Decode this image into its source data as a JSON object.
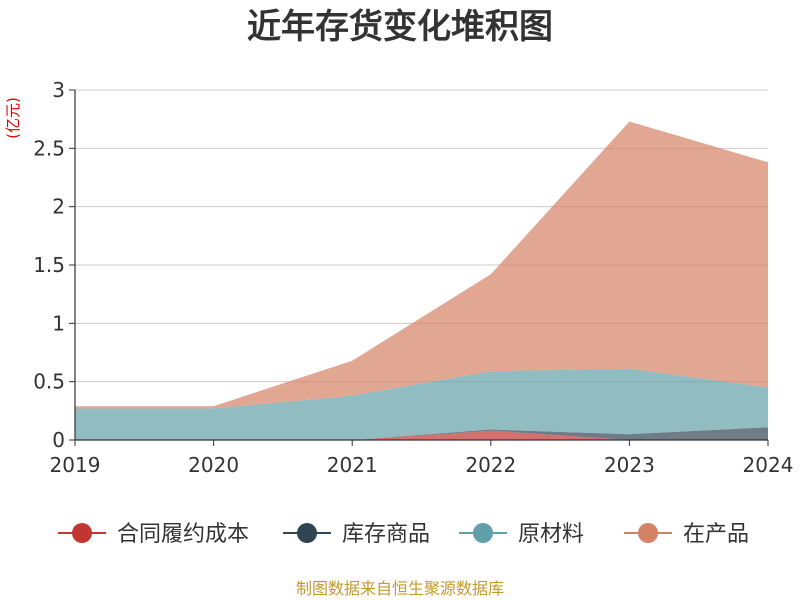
{
  "chart_data": {
    "type": "area",
    "stacked": true,
    "title": "近年存货变化堆积图",
    "ylabel": "(亿元)",
    "categories": [
      "2019",
      "2020",
      "2021",
      "2022",
      "2023",
      "2024"
    ],
    "ylim": [
      0,
      3
    ],
    "yticks": [
      "0",
      "0.5",
      "1",
      "1.5",
      "2",
      "2.5",
      "3"
    ],
    "grid": true,
    "legend_position": "bottom",
    "series": [
      {
        "name": "合同履约成本",
        "color": "#c23531",
        "values": [
          0,
          0,
          0,
          0.08,
          0,
          0
        ]
      },
      {
        "name": "库存商品",
        "color": "#2f4554",
        "values": [
          0,
          0,
          0,
          0.01,
          0.05,
          0.11
        ]
      },
      {
        "name": "原材料",
        "color": "#61a0a8",
        "values": [
          0.27,
          0.27,
          0.38,
          0.5,
          0.56,
          0.34
        ]
      },
      {
        "name": "在产品",
        "color": "#d48265",
        "values": [
          0.02,
          0.02,
          0.3,
          0.83,
          2.12,
          1.93
        ]
      }
    ]
  },
  "footer": {
    "source": "制图数据来自恒生聚源数据库"
  },
  "colors": {
    "text": "#333333",
    "grid": "#cccccc",
    "axis": "#333333",
    "unit_label": "#e00000",
    "footer": "#c49a2e"
  }
}
